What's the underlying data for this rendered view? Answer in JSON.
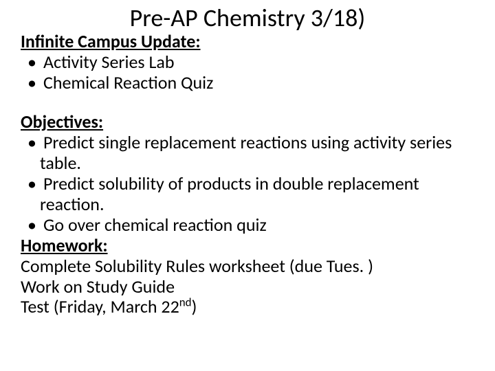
{
  "title": "Pre-AP Chemistry 3/18)",
  "sections": {
    "update": {
      "heading": "Infinite Campus Update:",
      "items": [
        "Activity Series Lab",
        "Chemical Reaction Quiz"
      ]
    },
    "objectives": {
      "heading": "Objectives:",
      "items": [
        "Predict single replacement reactions using activity series table.",
        "Predict solubility of products in double replacement reaction.",
        "Go over chemical reaction quiz"
      ]
    },
    "homework": {
      "heading": "Homework:",
      "lines": [
        "Complete Solubility Rules worksheet (due Tues. )",
        "Work on Study Guide"
      ],
      "test_prefix": "Test (Friday, March 22",
      "test_ordinal": "nd",
      "test_suffix": ")"
    }
  },
  "style": {
    "background_color": "#ffffff",
    "text_color": "#000000",
    "title_fontsize": 36,
    "body_fontsize": 26,
    "font_family": "Calibri"
  }
}
